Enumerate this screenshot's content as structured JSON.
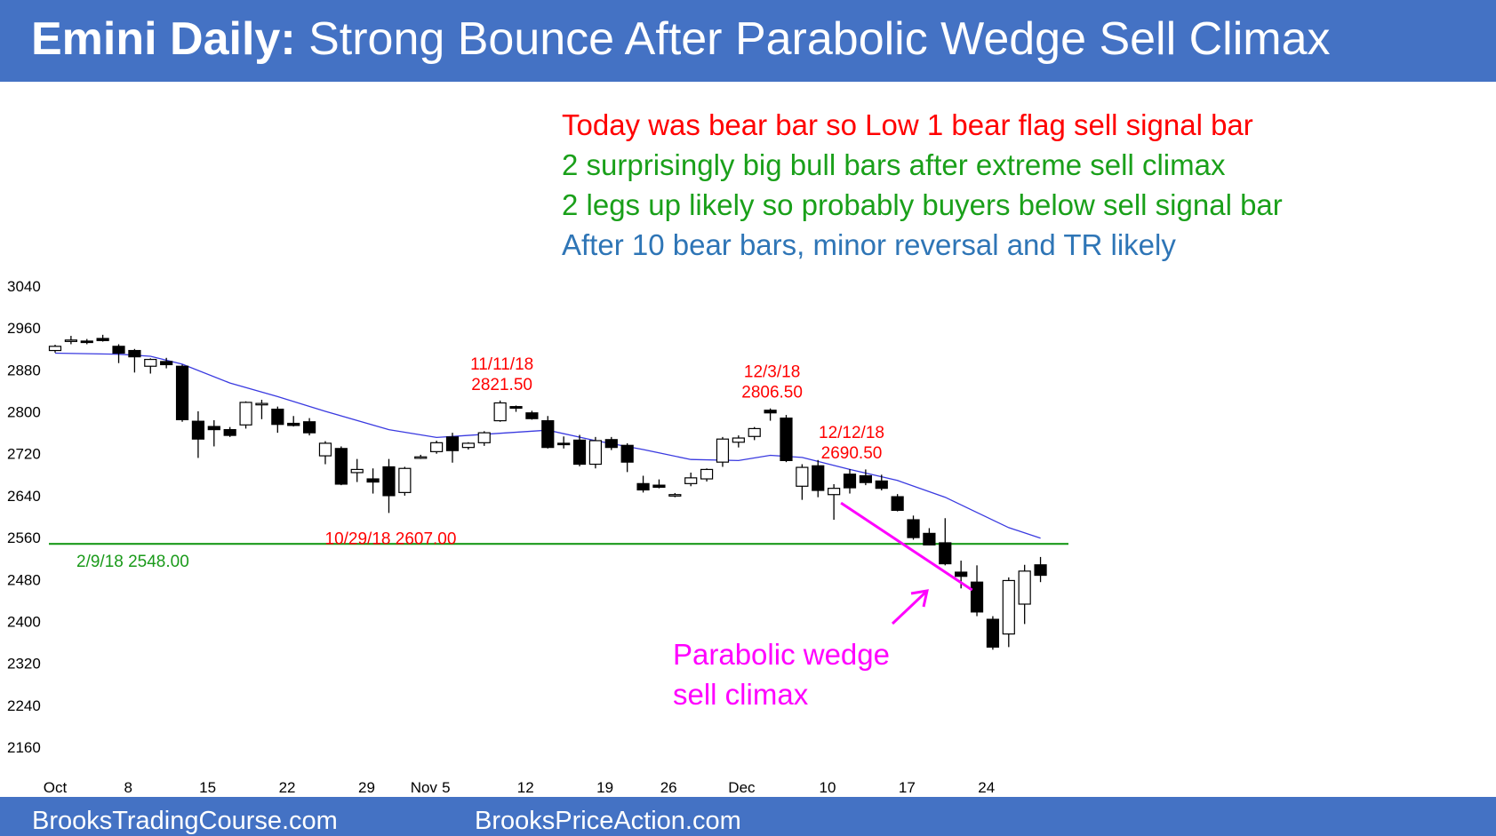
{
  "header": {
    "title_bold": "Emini Daily:",
    "title_rest": " Strong Bounce After Parabolic Wedge Sell Climax"
  },
  "notes": [
    {
      "text": "Today was bear bar so Low 1 bear flag sell signal bar",
      "color": "#ff0000"
    },
    {
      "text": "2 surprisingly big bull bars after extreme sell climax",
      "color": "#1aa01a"
    },
    {
      "text": "2 legs up likely so probably buyers below sell signal bar",
      "color": "#1aa01a"
    },
    {
      "text": "After 10 bear bars, minor reversal and TR likely",
      "color": "#2e75b6"
    }
  ],
  "footer": {
    "left": "BrooksTradingCourse.com",
    "right": "BrooksPriceAction.com"
  },
  "colors": {
    "header_bg": "#4472c4",
    "ema": "#3a3ae0",
    "support_line": "#1a9a1a",
    "price_labels": "#ff0000",
    "support_label": "#1a9a1a",
    "wedge": "#ff00ff"
  },
  "chart_data": {
    "type": "candlestick",
    "title": "",
    "xlabel": "",
    "ylabel": "",
    "y_ticks": [
      3040,
      2960,
      2880,
      2800,
      2720,
      2640,
      2560,
      2480,
      2400,
      2320,
      2240,
      2160
    ],
    "ylim": [
      2160,
      3040
    ],
    "x_ticks": [
      {
        "label": "Oct",
        "at": 0
      },
      {
        "label": "8",
        "at": 4.6
      },
      {
        "label": "15",
        "at": 9.6
      },
      {
        "label": "22",
        "at": 14.6
      },
      {
        "label": "29",
        "at": 19.6
      },
      {
        "label": "Nov",
        "at": 23.2
      },
      {
        "label": "5",
        "at": 24.6
      },
      {
        "label": "12",
        "at": 29.6
      },
      {
        "label": "19",
        "at": 34.6
      },
      {
        "label": "26",
        "at": 38.6
      },
      {
        "label": "Dec",
        "at": 43.2
      },
      {
        "label": "10",
        "at": 48.6
      },
      {
        "label": "17",
        "at": 53.6
      },
      {
        "label": "24",
        "at": 58.6
      }
    ],
    "grid": false,
    "legend": "none",
    "candles": [
      {
        "o": 2917,
        "h": 2928,
        "l": 2913,
        "c": 2925
      },
      {
        "o": 2937,
        "h": 2945,
        "l": 2929,
        "c": 2937
      },
      {
        "o": 2935,
        "h": 2939,
        "l": 2929,
        "c": 2933
      },
      {
        "o": 2940,
        "h": 2947,
        "l": 2934,
        "c": 2936
      },
      {
        "o": 2925,
        "h": 2929,
        "l": 2893,
        "c": 2912
      },
      {
        "o": 2917,
        "h": 2920,
        "l": 2875,
        "c": 2905
      },
      {
        "o": 2887,
        "h": 2902,
        "l": 2873,
        "c": 2900
      },
      {
        "o": 2896,
        "h": 2903,
        "l": 2883,
        "c": 2890
      },
      {
        "o": 2887,
        "h": 2890,
        "l": 2781,
        "c": 2785
      },
      {
        "o": 2782,
        "h": 2801,
        "l": 2712,
        "c": 2748
      },
      {
        "o": 2772,
        "h": 2784,
        "l": 2734,
        "c": 2766
      },
      {
        "o": 2766,
        "h": 2771,
        "l": 2752,
        "c": 2755
      },
      {
        "o": 2775,
        "h": 2820,
        "l": 2768,
        "c": 2818
      },
      {
        "o": 2815,
        "h": 2823,
        "l": 2786,
        "c": 2816
      },
      {
        "o": 2805,
        "h": 2810,
        "l": 2760,
        "c": 2776
      },
      {
        "o": 2778,
        "h": 2792,
        "l": 2772,
        "c": 2774
      },
      {
        "o": 2781,
        "h": 2788,
        "l": 2755,
        "c": 2760
      },
      {
        "o": 2716,
        "h": 2744,
        "l": 2700,
        "c": 2740
      },
      {
        "o": 2730,
        "h": 2734,
        "l": 2660,
        "c": 2662
      },
      {
        "o": 2684,
        "h": 2710,
        "l": 2666,
        "c": 2690
      },
      {
        "o": 2672,
        "h": 2692,
        "l": 2644,
        "c": 2666
      },
      {
        "o": 2695,
        "h": 2710,
        "l": 2607,
        "c": 2640
      },
      {
        "o": 2646,
        "h": 2695,
        "l": 2640,
        "c": 2692
      },
      {
        "o": 2712,
        "h": 2718,
        "l": 2710,
        "c": 2714
      },
      {
        "o": 2724,
        "h": 2745,
        "l": 2720,
        "c": 2741
      },
      {
        "o": 2752,
        "h": 2760,
        "l": 2703,
        "c": 2726
      },
      {
        "o": 2732,
        "h": 2742,
        "l": 2728,
        "c": 2740
      },
      {
        "o": 2741,
        "h": 2763,
        "l": 2735,
        "c": 2760
      },
      {
        "o": 2783,
        "h": 2821.5,
        "l": 2781,
        "c": 2817
      },
      {
        "o": 2810,
        "h": 2812,
        "l": 2800,
        "c": 2807
      },
      {
        "o": 2798,
        "h": 2802,
        "l": 2785,
        "c": 2787
      },
      {
        "o": 2783,
        "h": 2792,
        "l": 2730,
        "c": 2732
      },
      {
        "o": 2740,
        "h": 2753,
        "l": 2730,
        "c": 2738
      },
      {
        "o": 2746,
        "h": 2756,
        "l": 2696,
        "c": 2700
      },
      {
        "o": 2700,
        "h": 2752,
        "l": 2692,
        "c": 2745
      },
      {
        "o": 2747,
        "h": 2752,
        "l": 2727,
        "c": 2732
      },
      {
        "o": 2736,
        "h": 2740,
        "l": 2685,
        "c": 2704
      },
      {
        "o": 2663,
        "h": 2678,
        "l": 2646,
        "c": 2651
      },
      {
        "o": 2660,
        "h": 2671,
        "l": 2654,
        "c": 2656
      },
      {
        "o": 2642,
        "h": 2645,
        "l": 2637,
        "c": 2642
      },
      {
        "o": 2663,
        "h": 2684,
        "l": 2658,
        "c": 2674
      },
      {
        "o": 2672,
        "h": 2692,
        "l": 2667,
        "c": 2690
      },
      {
        "o": 2704,
        "h": 2752,
        "l": 2695,
        "c": 2748
      },
      {
        "o": 2742,
        "h": 2755,
        "l": 2732,
        "c": 2750
      },
      {
        "o": 2753,
        "h": 2771,
        "l": 2746,
        "c": 2768
      },
      {
        "o": 2803,
        "h": 2806.5,
        "l": 2783,
        "c": 2798
      },
      {
        "o": 2788,
        "h": 2794,
        "l": 2704,
        "c": 2707
      },
      {
        "o": 2658,
        "h": 2700,
        "l": 2632,
        "c": 2694
      },
      {
        "o": 2697,
        "h": 2708,
        "l": 2637,
        "c": 2650
      },
      {
        "o": 2642,
        "h": 2662,
        "l": 2594,
        "c": 2654
      },
      {
        "o": 2681,
        "h": 2690.5,
        "l": 2644,
        "c": 2655
      },
      {
        "o": 2678,
        "h": 2690,
        "l": 2660,
        "c": 2665
      },
      {
        "o": 2668,
        "h": 2680,
        "l": 2650,
        "c": 2654
      },
      {
        "o": 2638,
        "h": 2643,
        "l": 2610,
        "c": 2612
      },
      {
        "o": 2594,
        "h": 2602,
        "l": 2556,
        "c": 2560
      },
      {
        "o": 2568,
        "h": 2578,
        "l": 2545,
        "c": 2546
      },
      {
        "o": 2550,
        "h": 2597,
        "l": 2507,
        "c": 2510
      },
      {
        "o": 2494,
        "h": 2516,
        "l": 2463,
        "c": 2486
      },
      {
        "o": 2475,
        "h": 2507,
        "l": 2410,
        "c": 2418
      },
      {
        "o": 2404,
        "h": 2410,
        "l": 2346,
        "c": 2351
      },
      {
        "o": 2376,
        "h": 2484,
        "l": 2351,
        "c": 2478
      },
      {
        "o": 2433,
        "h": 2508,
        "l": 2395,
        "c": 2496
      },
      {
        "o": 2508,
        "h": 2523,
        "l": 2475,
        "c": 2488
      }
    ],
    "ema20": [
      [
        0,
        2912
      ],
      [
        4,
        2910
      ],
      [
        6,
        2906
      ],
      [
        8,
        2891
      ],
      [
        11,
        2855
      ],
      [
        14,
        2829
      ],
      [
        17,
        2801
      ],
      [
        21,
        2766
      ],
      [
        24,
        2751
      ],
      [
        28,
        2759
      ],
      [
        31,
        2765
      ],
      [
        34,
        2745
      ],
      [
        37,
        2728
      ],
      [
        40,
        2709
      ],
      [
        43,
        2707
      ],
      [
        45,
        2717
      ],
      [
        47,
        2713
      ],
      [
        50,
        2690
      ],
      [
        53,
        2669
      ],
      [
        56,
        2637
      ],
      [
        58,
        2608
      ],
      [
        60,
        2579
      ],
      [
        62,
        2559
      ]
    ],
    "support": {
      "value": 2548,
      "label": "2/9/18 2548.00"
    },
    "annotations": [
      {
        "lines": [
          "11/11/18",
          "2821.50"
        ],
        "bar": 28
      },
      {
        "lines": [
          "12/3/18",
          "2806.50"
        ],
        "bar": 45
      },
      {
        "lines": [
          "12/12/18",
          "2690.50"
        ],
        "bar": 50
      },
      {
        "lines": [
          "10/29/18 2607.00"
        ],
        "bar": 21
      }
    ],
    "wedge_label": [
      "Parabolic wedge",
      "sell climax"
    ]
  }
}
